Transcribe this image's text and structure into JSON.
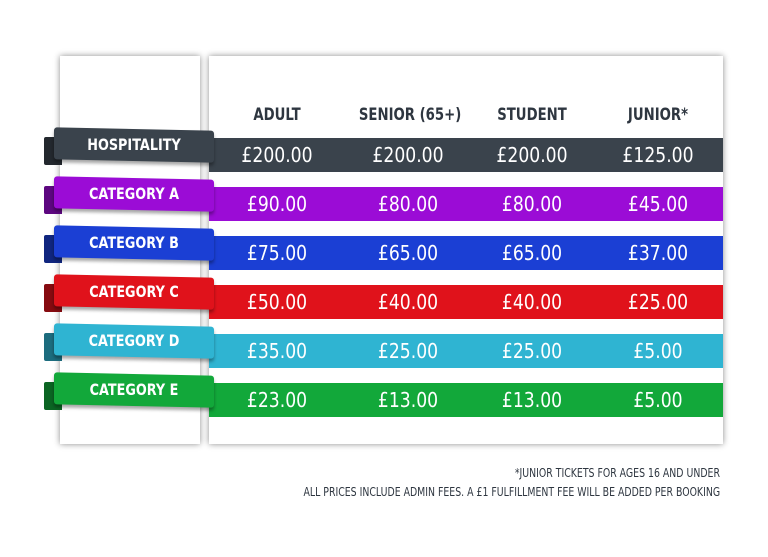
{
  "headers": [
    "ADULT",
    "SENIOR (65+)",
    "STUDENT",
    "JUNIOR*"
  ],
  "rows": [
    {
      "category": "HOSPITALITY",
      "color": "#3a434c",
      "prices": [
        "£200.00",
        "£200.00",
        "£200.00",
        "£125.00"
      ]
    },
    {
      "category": "CATEGORY A",
      "color": "#9b0cd6",
      "prices": [
        "£90.00",
        "£80.00",
        "£80.00",
        "£45.00"
      ]
    },
    {
      "category": "CATEGORY B",
      "color": "#1b3fd4",
      "prices": [
        "£75.00",
        "£65.00",
        "£65.00",
        "£37.00"
      ]
    },
    {
      "category": "CATEGORY C",
      "color": "#e0121b",
      "prices": [
        "£50.00",
        "£40.00",
        "£40.00",
        "£25.00"
      ]
    },
    {
      "category": "CATEGORY D",
      "color": "#2fb4d2",
      "prices": [
        "£35.00",
        "£25.00",
        "£25.00",
        "£5.00"
      ]
    },
    {
      "category": "CATEGORY E",
      "color": "#12a83a",
      "prices": [
        "£23.00",
        "£13.00",
        "£13.00",
        "£5.00"
      ]
    }
  ],
  "footnotes": {
    "junior": "*JUNIOR TICKETS FOR AGES 16 AND UNDER",
    "fees": "ALL PRICES INCLUDE ADMIN FEES. A £1 FULFILLMENT FEE WILL BE ADDED PER BOOKING"
  }
}
